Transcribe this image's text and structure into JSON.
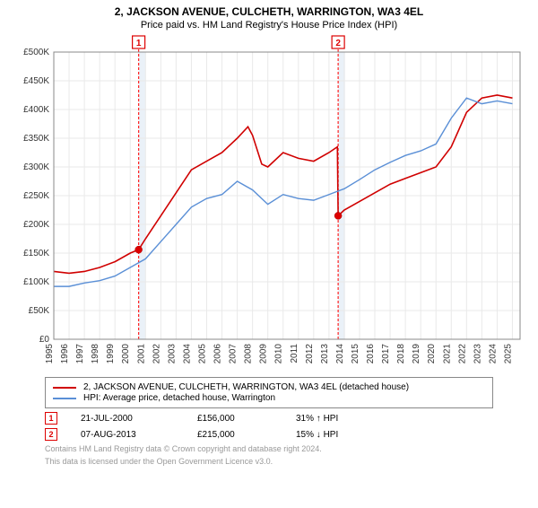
{
  "title": "2, JACKSON AVENUE, CULCHETH, WARRINGTON, WA3 4EL",
  "subtitle": "Price paid vs. HM Land Registry's House Price Index (HPI)",
  "chart": {
    "type": "line",
    "background_color": "#ffffff",
    "grid_color": "#e9e9e9",
    "border_color": "#888888",
    "xlim": [
      1995,
      2025.5
    ],
    "ylim": [
      0,
      500000
    ],
    "ytick_step": 50000,
    "ytick_prefix": "£",
    "ytick_labels": [
      "£0",
      "£50K",
      "£100K",
      "£150K",
      "£200K",
      "£250K",
      "£300K",
      "£350K",
      "£400K",
      "£450K",
      "£500K"
    ],
    "xticks": [
      1995,
      1996,
      1997,
      1998,
      1999,
      2000,
      2001,
      2002,
      2003,
      2004,
      2005,
      2006,
      2007,
      2008,
      2009,
      2010,
      2011,
      2012,
      2013,
      2014,
      2015,
      2016,
      2017,
      2018,
      2019,
      2020,
      2021,
      2022,
      2023,
      2024,
      2025
    ],
    "series": [
      {
        "name": "2, JACKSON AVENUE, CULCHETH, WARRINGTON, WA3 4EL (detached house)",
        "color": "#d00000",
        "line_width": 1.6,
        "points": [
          [
            1995,
            118000
          ],
          [
            1996,
            115000
          ],
          [
            1997,
            118000
          ],
          [
            1998,
            125000
          ],
          [
            1999,
            135000
          ],
          [
            2000,
            150000
          ],
          [
            2000.55,
            156000
          ],
          [
            2001,
            175000
          ],
          [
            2002,
            215000
          ],
          [
            2003,
            255000
          ],
          [
            2004,
            295000
          ],
          [
            2005,
            310000
          ],
          [
            2006,
            325000
          ],
          [
            2007,
            350000
          ],
          [
            2007.7,
            370000
          ],
          [
            2008,
            355000
          ],
          [
            2008.6,
            305000
          ],
          [
            2009,
            300000
          ],
          [
            2010,
            325000
          ],
          [
            2011,
            315000
          ],
          [
            2012,
            310000
          ],
          [
            2013,
            325000
          ],
          [
            2013.55,
            335000
          ],
          [
            2013.6,
            215000
          ],
          [
            2014,
            225000
          ],
          [
            2015,
            240000
          ],
          [
            2016,
            255000
          ],
          [
            2017,
            270000
          ],
          [
            2018,
            280000
          ],
          [
            2019,
            290000
          ],
          [
            2020,
            300000
          ],
          [
            2021,
            335000
          ],
          [
            2022,
            395000
          ],
          [
            2023,
            420000
          ],
          [
            2024,
            425000
          ],
          [
            2025,
            420000
          ]
        ]
      },
      {
        "name": "HPI: Average price, detached house, Warrington",
        "color": "#5a8fd6",
        "line_width": 1.4,
        "points": [
          [
            1995,
            92000
          ],
          [
            1996,
            92000
          ],
          [
            1997,
            98000
          ],
          [
            1998,
            102000
          ],
          [
            1999,
            110000
          ],
          [
            2000,
            125000
          ],
          [
            2001,
            140000
          ],
          [
            2002,
            170000
          ],
          [
            2003,
            200000
          ],
          [
            2004,
            230000
          ],
          [
            2005,
            245000
          ],
          [
            2006,
            252000
          ],
          [
            2007,
            275000
          ],
          [
            2008,
            260000
          ],
          [
            2009,
            235000
          ],
          [
            2010,
            252000
          ],
          [
            2011,
            245000
          ],
          [
            2012,
            242000
          ],
          [
            2013,
            252000
          ],
          [
            2014,
            262000
          ],
          [
            2015,
            278000
          ],
          [
            2016,
            295000
          ],
          [
            2017,
            308000
          ],
          [
            2018,
            320000
          ],
          [
            2019,
            328000
          ],
          [
            2020,
            340000
          ],
          [
            2021,
            385000
          ],
          [
            2022,
            420000
          ],
          [
            2023,
            410000
          ],
          [
            2024,
            415000
          ],
          [
            2025,
            410000
          ]
        ]
      }
    ],
    "event_bands": [
      {
        "x": 2000.55,
        "width_years": 0.45,
        "color": "#d9e6f2"
      },
      {
        "x": 2013.6,
        "width_years": 0.45,
        "color": "#d9e6f2"
      }
    ],
    "event_markers": [
      {
        "num": "1",
        "x": 2000.55,
        "price": 156000,
        "dot": true
      },
      {
        "num": "2",
        "x": 2013.6,
        "price": 215000,
        "dot": true
      }
    ]
  },
  "legend": [
    {
      "color": "#d00000",
      "label": "2, JACKSON AVENUE, CULCHETH, WARRINGTON, WA3 4EL (detached house)"
    },
    {
      "color": "#5a8fd6",
      "label": "HPI: Average price, detached house, Warrington"
    }
  ],
  "events": [
    {
      "num": "1",
      "date": "21-JUL-2000",
      "price": "£156,000",
      "hpi": "31% ↑ HPI"
    },
    {
      "num": "2",
      "date": "07-AUG-2013",
      "price": "£215,000",
      "hpi": "15% ↓ HPI"
    }
  ],
  "footnote1": "Contains HM Land Registry data © Crown copyright and database right 2024.",
  "footnote2": "This data is licensed under the Open Government Licence v3.0."
}
